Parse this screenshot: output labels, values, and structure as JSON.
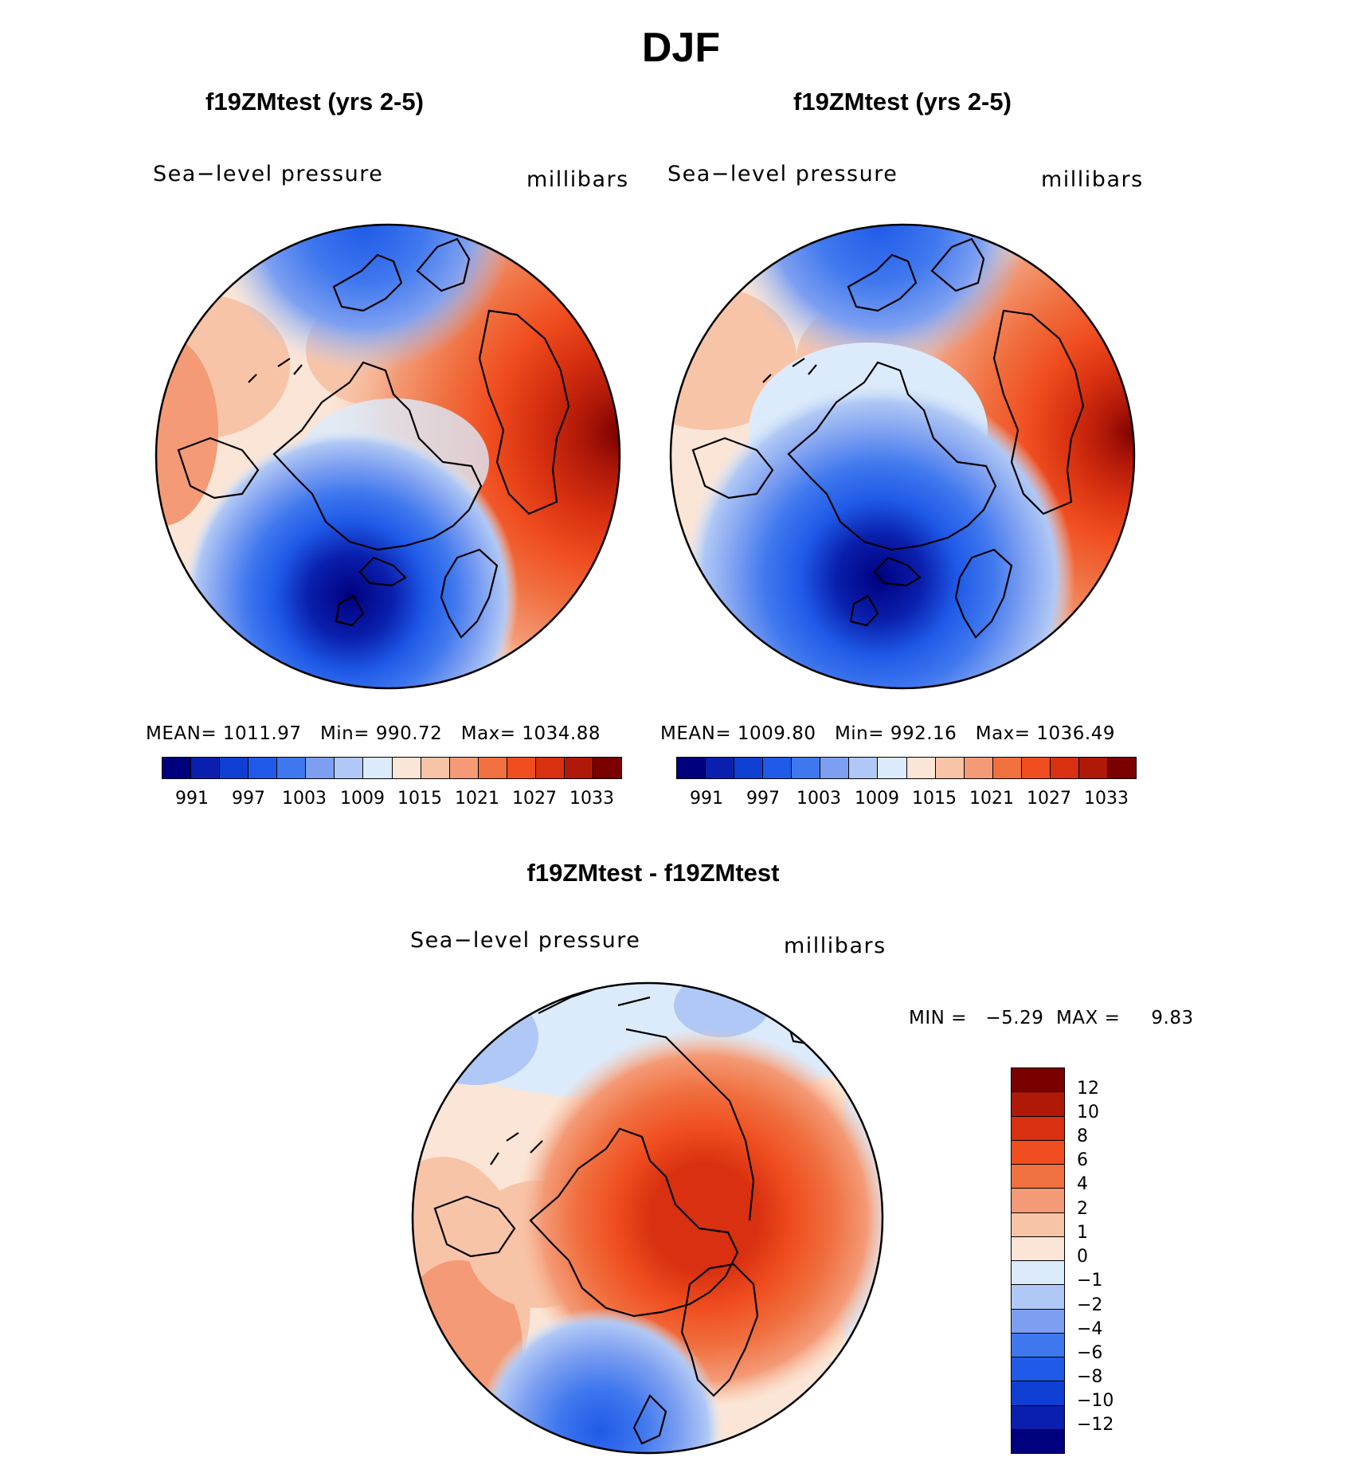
{
  "figure": {
    "season": "DJF",
    "panels": [
      {
        "title": "f19ZMtest (yrs 2-5)",
        "variable": "Sea−level pressure",
        "units": "millibars",
        "stats": "MEAN= 1011.97   Min= 990.72   Max= 1034.88",
        "colorbar_ticks": [
          "991",
          "997",
          "1003",
          "1009",
          "1015",
          "1021",
          "1027",
          "1033"
        ]
      },
      {
        "title": "f19ZMtest (yrs 2-5)",
        "variable": "Sea−level pressure",
        "units": "millibars",
        "stats": "MEAN= 1009.80   Min= 992.16   Max= 1036.49",
        "colorbar_ticks": [
          "991",
          "997",
          "1003",
          "1009",
          "1015",
          "1021",
          "1027",
          "1033"
        ]
      }
    ],
    "difference": {
      "title": "f19ZMtest - f19ZMtest",
      "variable": "Sea−level pressure",
      "units": "millibars",
      "stats": "MIN =   −5.29  MAX =     9.83",
      "colorbar_ticks": [
        "12",
        "10",
        "8",
        "6",
        "4",
        "2",
        "1",
        "0",
        "−1",
        "−2",
        "−4",
        "−6",
        "−8",
        "−10",
        "−12"
      ]
    },
    "palette": [
      "#00007f",
      "#0a1fad",
      "#0f3fd2",
      "#1f5ae8",
      "#3f78ee",
      "#7d9ff1",
      "#b0c8f5",
      "#dcebfb",
      "#fbe5d6",
      "#f8c4a8",
      "#f49a76",
      "#f07040",
      "#f04e20",
      "#d83010",
      "#b01808",
      "#7a0000"
    ]
  }
}
